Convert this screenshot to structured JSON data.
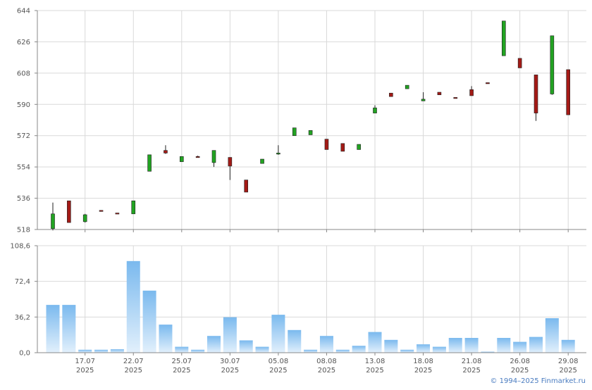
{
  "copyright": "© 1994–2025 Finmarket.ru",
  "colors": {
    "up_fill": "#22a322",
    "down_fill": "#a31a16",
    "candle_outline": "#222222",
    "volume_top": "#7ab9ee",
    "volume_bottom": "#e2f0fc",
    "grid": "#d9d9d9",
    "axis": "#888888"
  },
  "chart_data": [
    {
      "type": "candlestick",
      "panel": "price",
      "ylim": [
        518,
        644
      ],
      "y_ticks": [
        "518",
        "536",
        "554",
        "572",
        "590",
        "608",
        "626",
        "644"
      ],
      "grid": true,
      "candles": [
        {
          "o": 518.5,
          "h": 533.5,
          "l": 517.5,
          "c": 527.0
        },
        {
          "o": 534.5,
          "h": 534.5,
          "l": 522.0,
          "c": 522.0
        },
        {
          "o": 522.5,
          "h": 527.0,
          "l": 522.0,
          "c": 526.5
        },
        {
          "o": 529.0,
          "h": 529.0,
          "l": 528.5,
          "c": 528.5
        },
        {
          "o": 527.5,
          "h": 527.5,
          "l": 527.0,
          "c": 527.0
        },
        {
          "o": 527.0,
          "h": 534.5,
          "l": 527.0,
          "c": 534.5
        },
        {
          "o": 551.5,
          "h": 561.0,
          "l": 551.5,
          "c": 561.0
        },
        {
          "o": 563.5,
          "h": 566.5,
          "l": 561.5,
          "c": 562.0
        },
        {
          "o": 557.0,
          "h": 560.0,
          "l": 557.0,
          "c": 560.0
        },
        {
          "o": 560.0,
          "h": 560.5,
          "l": 559.5,
          "c": 559.5
        },
        {
          "o": 556.5,
          "h": 563.5,
          "l": 554.0,
          "c": 563.5
        },
        {
          "o": 559.5,
          "h": 559.5,
          "l": 546.5,
          "c": 554.5
        },
        {
          "o": 546.5,
          "h": 546.5,
          "l": 539.5,
          "c": 539.5
        },
        {
          "o": 556.0,
          "h": 558.5,
          "l": 556.0,
          "c": 558.5
        },
        {
          "o": 561.5,
          "h": 566.5,
          "l": 561.0,
          "c": 562.0
        },
        {
          "o": 572.0,
          "h": 576.5,
          "l": 572.0,
          "c": 576.5
        },
        {
          "o": 572.5,
          "h": 575.0,
          "l": 572.5,
          "c": 575.0
        },
        {
          "o": 570.0,
          "h": 570.0,
          "l": 564.0,
          "c": 564.0
        },
        {
          "o": 567.5,
          "h": 567.5,
          "l": 563.0,
          "c": 563.0
        },
        {
          "o": 564.0,
          "h": 567.0,
          "l": 564.0,
          "c": 567.0
        },
        {
          "o": 585.0,
          "h": 589.5,
          "l": 585.0,
          "c": 588.0
        },
        {
          "o": 596.5,
          "h": 596.5,
          "l": 594.5,
          "c": 594.5
        },
        {
          "o": 599.0,
          "h": 601.0,
          "l": 599.0,
          "c": 601.0
        },
        {
          "o": 592.0,
          "h": 597.0,
          "l": 592.0,
          "c": 593.0
        },
        {
          "o": 597.0,
          "h": 597.0,
          "l": 595.5,
          "c": 595.5
        },
        {
          "o": 594.0,
          "h": 594.0,
          "l": 593.5,
          "c": 593.5
        },
        {
          "o": 598.5,
          "h": 600.5,
          "l": 595.0,
          "c": 595.0
        },
        {
          "o": 602.5,
          "h": 602.5,
          "l": 602.0,
          "c": 602.0
        },
        {
          "o": 618.0,
          "h": 638.0,
          "l": 618.0,
          "c": 638.0
        },
        {
          "o": 616.5,
          "h": 616.5,
          "l": 611.0,
          "c": 611.0
        },
        {
          "o": 607.0,
          "h": 607.0,
          "l": 580.5,
          "c": 585.0
        },
        {
          "o": 596.0,
          "h": 629.5,
          "l": 595.5,
          "c": 629.5
        },
        {
          "o": 610.0,
          "h": 610.0,
          "l": 584.0,
          "c": 584.0
        }
      ]
    },
    {
      "type": "bar",
      "panel": "volume",
      "ylim": [
        0,
        108.6
      ],
      "y_ticks": [
        "0,0",
        "36,2",
        "72,4",
        "108,6"
      ],
      "x_ticks": [
        {
          "index": 2,
          "date": "17.07",
          "year": "2025"
        },
        {
          "index": 5,
          "date": "22.07",
          "year": "2025"
        },
        {
          "index": 8,
          "date": "25.07",
          "year": "2025"
        },
        {
          "index": 11,
          "date": "30.07",
          "year": "2025"
        },
        {
          "index": 14,
          "date": "05.08",
          "year": "2025"
        },
        {
          "index": 17,
          "date": "08.08",
          "year": "2025"
        },
        {
          "index": 20,
          "date": "13.08",
          "year": "2025"
        },
        {
          "index": 23,
          "date": "18.08",
          "year": "2025"
        },
        {
          "index": 26,
          "date": "21.08",
          "year": "2025"
        },
        {
          "index": 29,
          "date": "26.08",
          "year": "2025"
        },
        {
          "index": 32,
          "date": "29.08",
          "year": "2025"
        }
      ],
      "grid": true,
      "values": [
        48.5,
        48.5,
        3.0,
        3.0,
        3.5,
        93.0,
        63.0,
        28.5,
        6.0,
        3.0,
        17.0,
        36.0,
        12.5,
        6.0,
        38.5,
        23.0,
        3.0,
        17.0,
        3.0,
        7.0,
        21.0,
        13.0,
        3.0,
        8.5,
        6.0,
        15.0,
        15.0,
        1.0,
        15.0,
        11.0,
        16.0,
        35.0,
        13.0
      ]
    }
  ]
}
